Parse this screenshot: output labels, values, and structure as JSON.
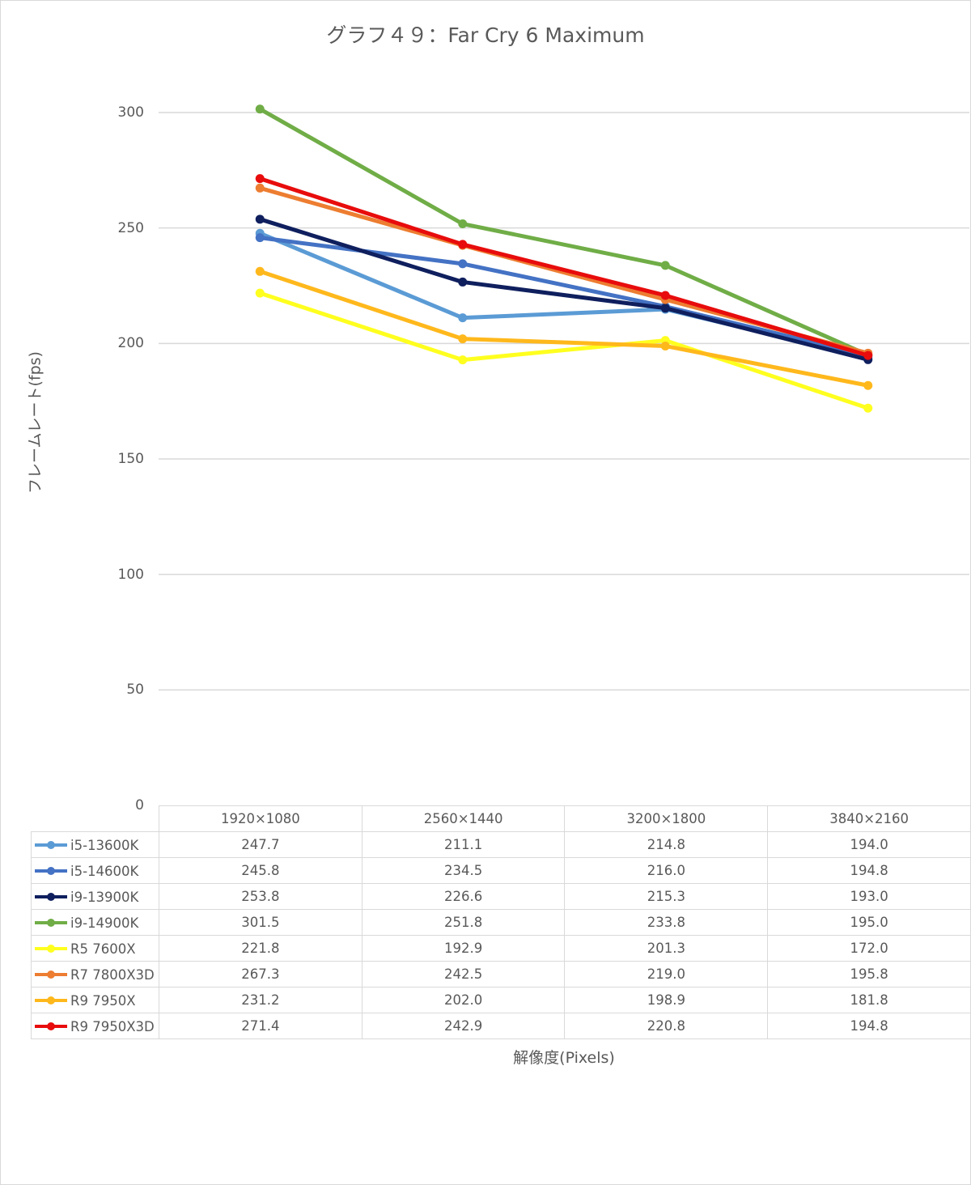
{
  "chart_data": {
    "type": "line",
    "title": "グラフ４９：Far Cry 6 Maximum",
    "xlabel": "解像度(Pixels)",
    "ylabel": "フレームレート(fps)",
    "ylim": [
      0,
      300
    ],
    "yticks": [
      "300",
      "250",
      "200",
      "150",
      "100",
      "50",
      "0"
    ],
    "grid": true,
    "legend_placement": "data-table",
    "categories": [
      "1920×1080",
      "2560×1440",
      "3200×1800",
      "3840×2160"
    ],
    "series": [
      {
        "name": "i5-13600K",
        "color": "#5b9bd5",
        "values": [
          247.7,
          211.1,
          214.8,
          194.0
        ],
        "labels": [
          "247.7",
          "211.1",
          "214.8",
          "194.0"
        ]
      },
      {
        "name": "i5-14600K",
        "color": "#4472c4",
        "values": [
          245.8,
          234.5,
          216.0,
          194.8
        ],
        "labels": [
          "245.8",
          "234.5",
          "216.0",
          "194.8"
        ]
      },
      {
        "name": "i9-13900K",
        "color": "#0f1f5e",
        "values": [
          253.8,
          226.6,
          215.3,
          193.0
        ],
        "labels": [
          "253.8",
          "226.6",
          "215.3",
          "193.0"
        ]
      },
      {
        "name": "i9-14900K",
        "color": "#70ad47",
        "values": [
          301.5,
          251.8,
          233.8,
          195.0
        ],
        "labels": [
          "301.5",
          "251.8",
          "233.8",
          "195.0"
        ]
      },
      {
        "name": "R5 7600X",
        "color": "#ffff1f",
        "values": [
          221.8,
          192.9,
          201.3,
          172.0
        ],
        "labels": [
          "221.8",
          "192.9",
          "201.3",
          "172.0"
        ]
      },
      {
        "name": "R7 7800X3D",
        "color": "#ed7d31",
        "values": [
          267.3,
          242.5,
          219.0,
          195.8
        ],
        "labels": [
          "267.3",
          "242.5",
          "219.0",
          "195.8"
        ]
      },
      {
        "name": "R9 7950X",
        "color": "#ffb81c",
        "values": [
          231.2,
          202.0,
          198.9,
          181.8
        ],
        "labels": [
          "231.2",
          "202.0",
          "198.9",
          "181.8"
        ]
      },
      {
        "name": "R9 7950X3D",
        "color": "#e80c0c",
        "values": [
          271.4,
          242.9,
          220.8,
          194.8
        ],
        "labels": [
          "271.4",
          "242.9",
          "220.8",
          "194.8"
        ]
      }
    ]
  }
}
